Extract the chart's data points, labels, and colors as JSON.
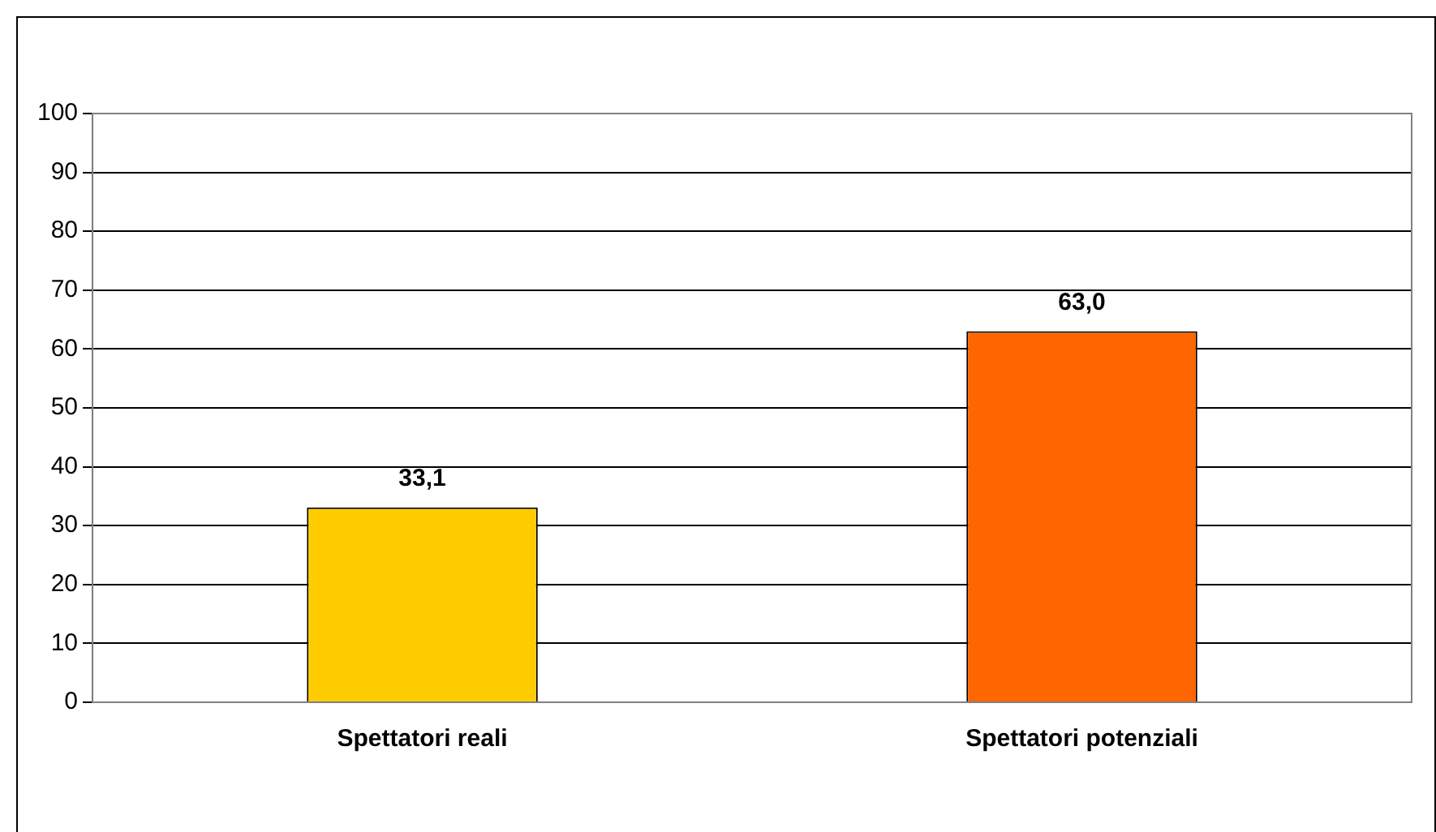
{
  "chart_data": {
    "type": "bar",
    "categories": [
      "Spettatori reali",
      "Spettatori potenziali"
    ],
    "values": [
      33.1,
      63.0
    ],
    "colors": [
      "#ffcc00",
      "#ff6600"
    ],
    "value_labels": [
      "33,1",
      "63,0"
    ],
    "ylim": [
      0,
      100
    ],
    "yticks": [
      0,
      10,
      20,
      30,
      40,
      50,
      60,
      70,
      80,
      90,
      100
    ],
    "grid": "y",
    "legend": false
  }
}
